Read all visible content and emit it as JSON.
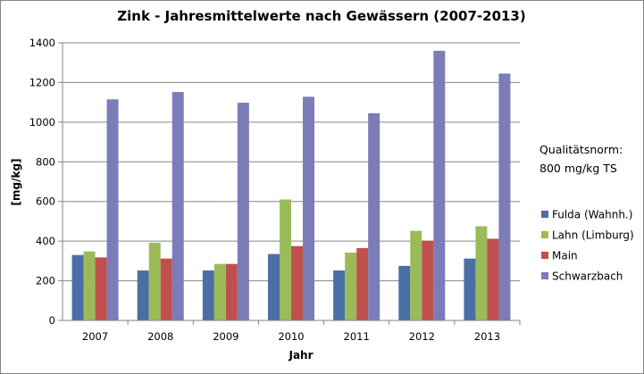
{
  "chart_data": {
    "type": "bar",
    "title": "Zink - Jahresmittelwerte nach Gewässern (2007-2013)",
    "xlabel": "Jahr",
    "ylabel": "[mg/kg]",
    "categories": [
      "2007",
      "2008",
      "2009",
      "2010",
      "2011",
      "2012",
      "2013"
    ],
    "ylim": [
      0,
      1400
    ],
    "yticks": [
      0,
      200,
      400,
      600,
      800,
      1000,
      1200,
      1400
    ],
    "grid": true,
    "legend_position": "right",
    "series": [
      {
        "name": "Fulda (Wahnh.)",
        "color": "#4a6fa5",
        "values": [
          330,
          252,
          252,
          335,
          252,
          275,
          312
        ]
      },
      {
        "name": "Lahn (Limburg)",
        "color": "#9bbb59",
        "values": [
          348,
          392,
          285,
          610,
          342,
          452,
          475
        ]
      },
      {
        "name": "Main",
        "color": "#c0504d",
        "values": [
          318,
          312,
          285,
          375,
          365,
          402,
          412
        ]
      },
      {
        "name": "Schwarzbach",
        "color": "#7b7cb8",
        "values": [
          1115,
          1152,
          1098,
          1128,
          1045,
          1360,
          1245
        ]
      }
    ],
    "annotations": [
      "Qualitätsnorm:",
      "800 mg/kg TS"
    ]
  }
}
